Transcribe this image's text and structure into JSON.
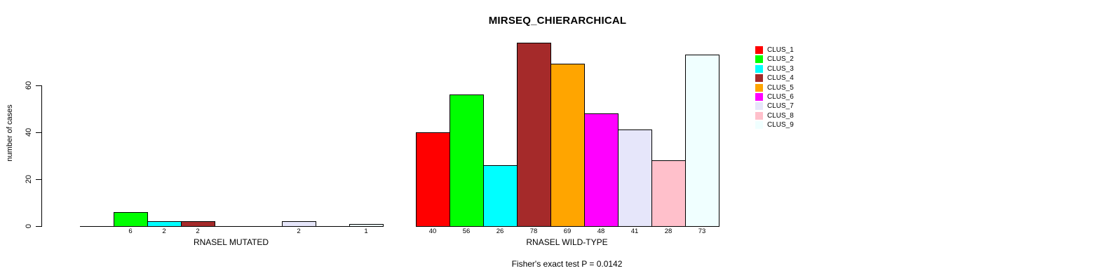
{
  "title": "MIRSEQ_CHIERARCHICAL",
  "chart_data": {
    "type": "bar",
    "title": "MIRSEQ_CHIERARCHICAL",
    "ylabel": "number of cases",
    "xlabel": "",
    "yticks": [
      0,
      20,
      40,
      60
    ],
    "ylim": [
      0,
      84
    ],
    "grid": false,
    "legend_position": "top-right",
    "annotation": "Fisher's exact test P = 0.0142",
    "series_labels": [
      "CLUS_1",
      "CLUS_2",
      "CLUS_3",
      "CLUS_4",
      "CLUS_5",
      "CLUS_6",
      "CLUS_7",
      "CLUS_8",
      "CLUS_9"
    ],
    "series_colors": [
      "#FF0000",
      "#00FF00",
      "#00FFFF",
      "#A52A2A",
      "#FFA500",
      "#FF00FF",
      "#E6E6FA",
      "#FFC0CB",
      "#F0FFFF"
    ],
    "groups": [
      {
        "label": "RNASEL MUTATED",
        "values": [
          0,
          6,
          2,
          2,
          0,
          0,
          2,
          0,
          1
        ]
      },
      {
        "label": "RNASEL WILD-TYPE",
        "values": [
          40,
          56,
          26,
          78,
          69,
          48,
          41,
          28,
          73
        ]
      }
    ]
  },
  "colors": {
    "background": "#FFFFFF",
    "axis": "#000000",
    "bar_border": "#000000",
    "text": "#000000"
  }
}
